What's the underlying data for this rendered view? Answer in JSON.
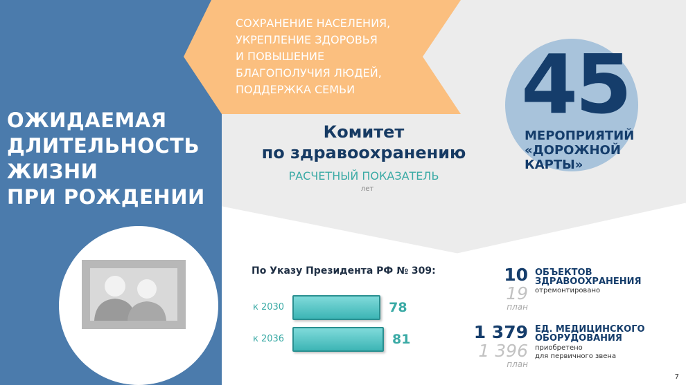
{
  "left_title": [
    "ОЖИДАЕМАЯ",
    "ДЛИТЕЛЬНОСТЬ",
    "ЖИЗНИ",
    "ПРИ РОЖДЕНИИ"
  ],
  "banner": [
    "СОХРАНЕНИЕ НАСЕЛЕНИЯ,",
    "УКРЕПЛЕНИЕ ЗДОРОВЬЯ",
    "И ПОВЫШЕНИЕ",
    "БЛАГОПОЛУЧИЯ ЛЮДЕЙ,",
    "ПОДДЕРЖКА СЕМЬИ"
  ],
  "committee": [
    "Комитет",
    "по здравоохранению"
  ],
  "indicator": "РАСЧЕТНЫЙ ПОКАЗАТЕЛЬ",
  "unit": "лет",
  "roadmap": {
    "number": "45",
    "lines": [
      "МЕРОПРИЯТИЙ",
      "«ДОРОЖНОЙ",
      "КАРТЫ»"
    ]
  },
  "targets": {
    "title": "По Указу Президента РФ № 309:",
    "rows": [
      {
        "label": "к 2030",
        "value": 78
      },
      {
        "label": "к 2036",
        "value": 81
      }
    ]
  },
  "stats": [
    {
      "fact": "10",
      "plan": "19",
      "plan_label": "план",
      "title": [
        "ОБЪЕКТОВ",
        "ЗДРАВООХРАНЕНИЯ"
      ],
      "note": [
        "отремонтировано"
      ]
    },
    {
      "fact": "1 379",
      "plan": "1 396",
      "plan_label": "план",
      "title": [
        "ЕД. МЕДИЦИНСКОГО",
        "ОБОРУДОВАНИЯ"
      ],
      "note": [
        "приобретено",
        "для первичного звена"
      ]
    }
  ],
  "page_number": 7
}
